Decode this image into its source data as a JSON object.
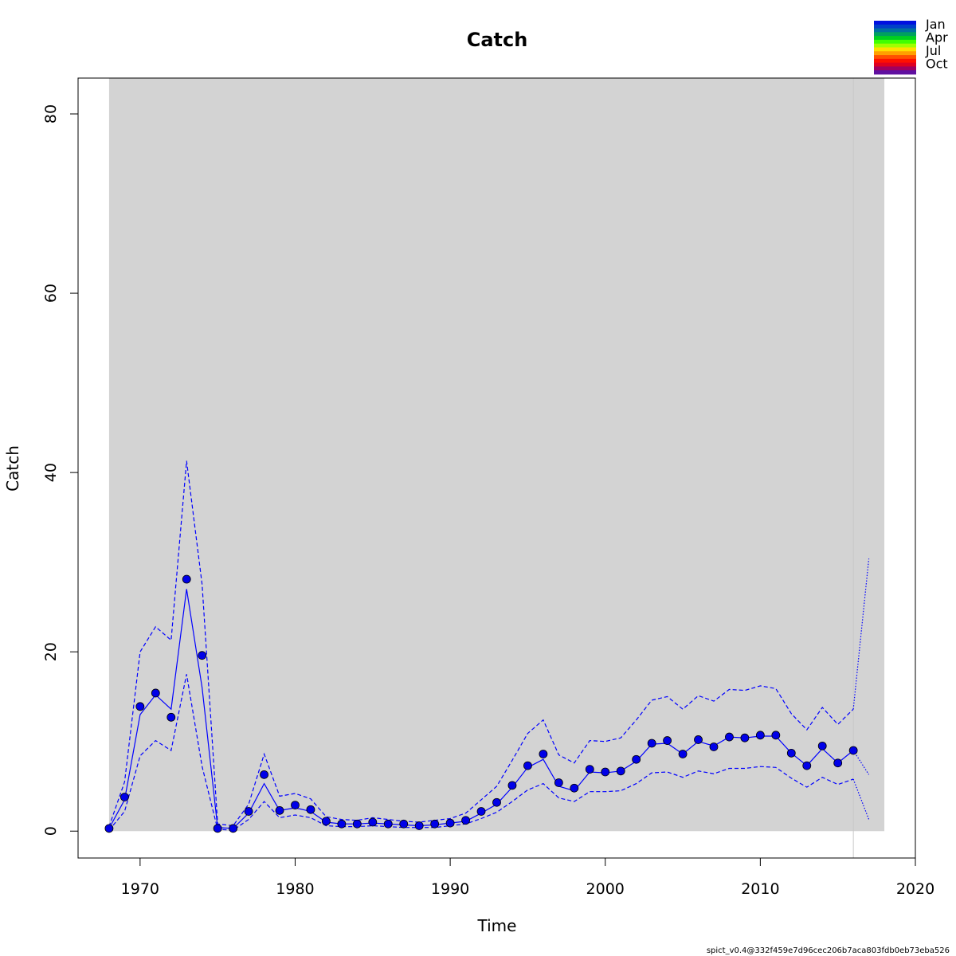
{
  "chart_data": {
    "type": "line",
    "title": "Catch",
    "xlabel": "Time",
    "ylabel": "Catch",
    "xlim": [
      1966,
      2020
    ],
    "ylim": [
      -3,
      84
    ],
    "xticks": [
      1970,
      1980,
      1990,
      2000,
      2010,
      2020
    ],
    "yticks": [
      0,
      20,
      40,
      60,
      80
    ],
    "shaded_region": [
      1968,
      2018
    ],
    "vertical_line_x": 2016,
    "observed_points": {
      "x": [
        1968,
        1969,
        1970,
        1971,
        1972,
        1973,
        1974,
        1975,
        1976,
        1977,
        1978,
        1979,
        1980,
        1981,
        1982,
        1983,
        1984,
        1985,
        1986,
        1987,
        1988,
        1989,
        1990,
        1991,
        1992,
        1993,
        1994,
        1995,
        1996,
        1997,
        1998,
        1999,
        2000,
        2001,
        2002,
        2003,
        2004,
        2005,
        2006,
        2007,
        2008,
        2009,
        2010,
        2011,
        2012,
        2013,
        2014,
        2015,
        2016
      ],
      "y": [
        0.3,
        3.8,
        13.9,
        15.4,
        12.7,
        28.1,
        19.6,
        0.3,
        0.3,
        2.2,
        6.3,
        2.3,
        2.9,
        2.4,
        1.1,
        0.8,
        0.8,
        1.0,
        0.8,
        0.8,
        0.6,
        0.8,
        0.9,
        1.2,
        2.2,
        3.2,
        5.1,
        7.3,
        8.6,
        5.4,
        4.8,
        6.9,
        6.6,
        6.7,
        8.0,
        9.8,
        10.1,
        8.6,
        10.2,
        9.4,
        10.5,
        10.4,
        10.7,
        10.7,
        8.7,
        7.3,
        9.5,
        7.6,
        9.0
      ]
    },
    "series": [
      {
        "name": "",
        "style": "solid",
        "x": [
          1968,
          1969,
          1970,
          1971,
          1972,
          1973,
          1974,
          1975,
          1976,
          1977,
          1978,
          1979,
          1980,
          1981,
          1982,
          1983,
          1984,
          1985,
          1986,
          1987,
          1988,
          1989,
          1990,
          1991,
          1992,
          1993,
          1994,
          1995,
          1996,
          1997,
          1998,
          1999,
          2000,
          2001,
          2002,
          2003,
          2004,
          2005,
          2006,
          2007,
          2008,
          2009,
          2010,
          2011,
          2012,
          2013,
          2014,
          2015,
          2016
        ],
        "y": [
          0.3,
          3.5,
          13.0,
          15.2,
          13.6,
          27.0,
          16.0,
          0.4,
          0.3,
          2.0,
          5.3,
          2.3,
          2.6,
          2.2,
          1.0,
          0.8,
          0.8,
          0.9,
          0.8,
          0.7,
          0.6,
          0.7,
          0.9,
          1.1,
          2.0,
          3.0,
          4.9,
          7.1,
          8.0,
          5.0,
          4.5,
          6.6,
          6.5,
          6.7,
          7.8,
          9.7,
          9.8,
          8.6,
          10.0,
          9.5,
          10.5,
          10.4,
          10.6,
          10.6,
          8.7,
          7.3,
          9.2,
          7.6,
          9.0
        ]
      },
      {
        "name": "",
        "style": "dotted",
        "x": [
          2016,
          2017
        ],
        "y": [
          9.0,
          6.3
        ]
      },
      {
        "name": "",
        "style": "dashed",
        "x": [
          1968,
          1969,
          1970,
          1971,
          1972,
          1973,
          1974,
          1975,
          1976,
          1977,
          1978,
          1979,
          1980,
          1981,
          1982,
          1983,
          1984,
          1985,
          1986,
          1987,
          1988,
          1989,
          1990,
          1991,
          1992,
          1993,
          1994,
          1995,
          1996,
          1997,
          1998,
          1999,
          2000,
          2001,
          2002,
          2003,
          2004,
          2005,
          2006,
          2007,
          2008,
          2009,
          2010,
          2011,
          2012,
          2013,
          2014,
          2015,
          2016
        ],
        "y": [
          0.5,
          5.5,
          20.0,
          22.8,
          21.3,
          41.3,
          27.5,
          0.8,
          0.6,
          3.0,
          8.6,
          3.9,
          4.2,
          3.6,
          1.6,
          1.3,
          1.2,
          1.5,
          1.3,
          1.1,
          1.0,
          1.2,
          1.4,
          2.0,
          3.5,
          5.0,
          7.9,
          10.9,
          12.4,
          8.5,
          7.6,
          10.1,
          10.0,
          10.4,
          12.4,
          14.6,
          15.0,
          13.6,
          15.1,
          14.5,
          15.8,
          15.7,
          16.2,
          15.9,
          13.1,
          11.3,
          13.8,
          11.9,
          13.6
        ]
      },
      {
        "name": "",
        "style": "dotted",
        "x": [
          2016,
          2017
        ],
        "y": [
          13.6,
          30.4
        ]
      },
      {
        "name": "",
        "style": "dashed",
        "x": [
          1968,
          1969,
          1970,
          1971,
          1972,
          1973,
          1974,
          1975,
          1976,
          1977,
          1978,
          1979,
          1980,
          1981,
          1982,
          1983,
          1984,
          1985,
          1986,
          1987,
          1988,
          1989,
          1990,
          1991,
          1992,
          1993,
          1994,
          1995,
          1996,
          1997,
          1998,
          1999,
          2000,
          2001,
          2002,
          2003,
          2004,
          2005,
          2006,
          2007,
          2008,
          2009,
          2010,
          2011,
          2012,
          2013,
          2014,
          2015,
          2016
        ],
        "y": [
          0.1,
          2.2,
          8.4,
          10.1,
          9.0,
          17.5,
          7.2,
          0.2,
          0.1,
          1.3,
          3.3,
          1.5,
          1.8,
          1.5,
          0.6,
          0.5,
          0.5,
          0.6,
          0.5,
          0.4,
          0.4,
          0.4,
          0.6,
          0.8,
          1.4,
          2.1,
          3.3,
          4.6,
          5.3,
          3.7,
          3.3,
          4.4,
          4.4,
          4.5,
          5.3,
          6.5,
          6.6,
          6.0,
          6.7,
          6.4,
          7.0,
          7.0,
          7.2,
          7.1,
          5.9,
          4.9,
          6.0,
          5.2,
          5.8
        ]
      },
      {
        "name": "",
        "style": "dotted",
        "x": [
          2016,
          2017
        ],
        "y": [
          5.8,
          1.3
        ]
      }
    ],
    "legend": {
      "position": "top-right",
      "labels": [
        "Jan",
        "Apr",
        "Jul",
        "Oct"
      ],
      "colors": [
        "#0010e0",
        "#0040c8",
        "#0070a0",
        "#00a060",
        "#00d020",
        "#40ff00",
        "#a0ff00",
        "#ffe000",
        "#ffa000",
        "#ff5000",
        "#ff1000",
        "#e00020",
        "#a00060",
        "#6010a0"
      ]
    },
    "colors": {
      "line": "#0000ff",
      "points": "#0000e8",
      "shade": "#d3d3d3",
      "vertical_line": "#c8c8c8"
    }
  },
  "footer": "spict_v0.4@332f459e7d96cec206b7aca803fdb0eb73eba526"
}
